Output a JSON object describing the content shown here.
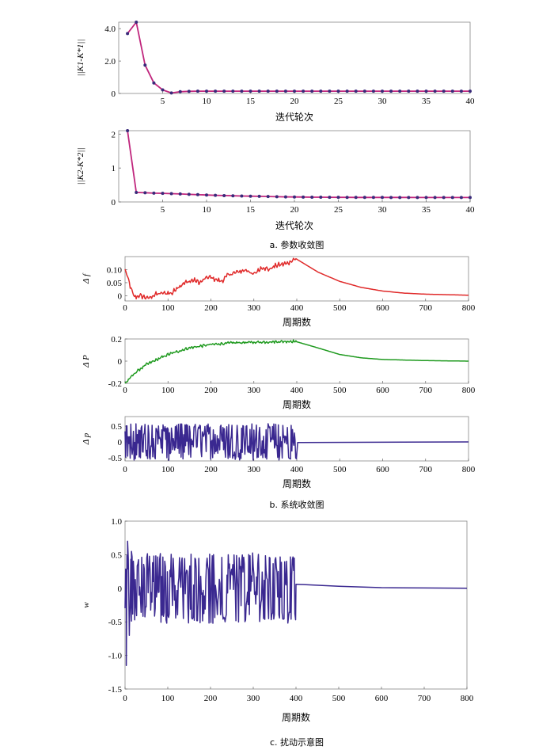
{
  "captions": {
    "a": "a. 参数收敛图",
    "b": "b. 系统收敛图",
    "c": "c. 扰动示意图"
  },
  "chart_data": [
    {
      "id": "a1",
      "type": "line",
      "xlabel": "迭代轮次",
      "ylabel": "||K1-K*1||",
      "xlim": [
        0,
        40
      ],
      "ylim": [
        0,
        4.4
      ],
      "xticks": [
        5,
        10,
        15,
        20,
        25,
        30,
        35,
        40
      ],
      "yticks": [
        0,
        2.0,
        4.0
      ],
      "ytick_labels": [
        "0",
        "2.0",
        "4.0"
      ],
      "color": "#c0267d",
      "marker_color": "#3a2a7a",
      "x": [
        1,
        2,
        3,
        4,
        5,
        6,
        7,
        8,
        9,
        10,
        11,
        12,
        13,
        14,
        15,
        16,
        17,
        18,
        19,
        20,
        21,
        22,
        23,
        24,
        25,
        26,
        27,
        28,
        29,
        30,
        31,
        32,
        33,
        34,
        35,
        36,
        37,
        38,
        39,
        40
      ],
      "y": [
        3.7,
        4.4,
        1.75,
        0.65,
        0.22,
        0.03,
        0.11,
        0.13,
        0.14,
        0.14,
        0.14,
        0.14,
        0.14,
        0.14,
        0.14,
        0.14,
        0.14,
        0.14,
        0.14,
        0.14,
        0.14,
        0.14,
        0.14,
        0.14,
        0.14,
        0.14,
        0.14,
        0.14,
        0.14,
        0.14,
        0.14,
        0.14,
        0.14,
        0.14,
        0.14,
        0.14,
        0.14,
        0.14,
        0.14,
        0.14
      ]
    },
    {
      "id": "a2",
      "type": "line",
      "xlabel": "迭代轮次",
      "ylabel": "||K2-K*2||",
      "xlim": [
        0,
        40
      ],
      "ylim": [
        0,
        2.1
      ],
      "xticks": [
        5,
        10,
        15,
        20,
        25,
        30,
        35,
        40
      ],
      "yticks": [
        0,
        1,
        2
      ],
      "ytick_labels": [
        "0",
        "1",
        "2"
      ],
      "color": "#c0267d",
      "marker_color": "#3a2a7a",
      "x": [
        1,
        2,
        3,
        4,
        5,
        6,
        7,
        8,
        9,
        10,
        11,
        12,
        13,
        14,
        15,
        16,
        17,
        18,
        19,
        20,
        21,
        22,
        23,
        24,
        25,
        26,
        27,
        28,
        29,
        30,
        31,
        32,
        33,
        34,
        35,
        36,
        37,
        38,
        39,
        40
      ],
      "y": [
        2.1,
        0.28,
        0.27,
        0.26,
        0.255,
        0.245,
        0.235,
        0.225,
        0.215,
        0.205,
        0.195,
        0.188,
        0.181,
        0.175,
        0.17,
        0.165,
        0.16,
        0.155,
        0.15,
        0.147,
        0.144,
        0.141,
        0.139,
        0.137,
        0.136,
        0.135,
        0.134,
        0.134,
        0.133,
        0.133,
        0.132,
        0.132,
        0.132,
        0.131,
        0.131,
        0.131,
        0.131,
        0.13,
        0.13,
        0.13
      ]
    },
    {
      "id": "b1",
      "type": "line",
      "xlabel": "周期数",
      "ylabel": "Δ f",
      "xlim": [
        0,
        800
      ],
      "ylim": [
        -0.02,
        0.15
      ],
      "xticks": [
        0,
        100,
        200,
        300,
        400,
        500,
        600,
        700,
        800
      ],
      "yticks": [
        0,
        0.05,
        0.1
      ],
      "ytick_labels": [
        "0",
        "0.05",
        "0.10"
      ],
      "color": "#e02a2a",
      "keypoints": [
        [
          0,
          0.1
        ],
        [
          8,
          0.06
        ],
        [
          15,
          0.02
        ],
        [
          22,
          -0.005
        ],
        [
          35,
          0.0
        ],
        [
          55,
          -0.01
        ],
        [
          70,
          0.005
        ],
        [
          90,
          0.01
        ],
        [
          110,
          0.01
        ],
        [
          120,
          0.03
        ],
        [
          140,
          0.05
        ],
        [
          160,
          0.06
        ],
        [
          175,
          0.05
        ],
        [
          190,
          0.07
        ],
        [
          200,
          0.07
        ],
        [
          215,
          0.06
        ],
        [
          225,
          0.055
        ],
        [
          240,
          0.08
        ],
        [
          260,
          0.09
        ],
        [
          285,
          0.1
        ],
        [
          295,
          0.08
        ],
        [
          305,
          0.09
        ],
        [
          320,
          0.11
        ],
        [
          335,
          0.1
        ],
        [
          350,
          0.115
        ],
        [
          365,
          0.12
        ],
        [
          380,
          0.125
        ],
        [
          392,
          0.14
        ],
        [
          400,
          0.14
        ],
        [
          450,
          0.09
        ],
        [
          500,
          0.055
        ],
        [
          550,
          0.032
        ],
        [
          600,
          0.018
        ],
        [
          650,
          0.01
        ],
        [
          700,
          0.006
        ],
        [
          750,
          0.004
        ],
        [
          800,
          0.002
        ]
      ],
      "noise_end": 400,
      "noise_amp": 0.006
    },
    {
      "id": "b2",
      "type": "line",
      "xlabel": "周期数",
      "ylabel": "Δ P",
      "xlim": [
        0,
        800
      ],
      "ylim": [
        -0.2,
        0.2
      ],
      "xticks": [
        0,
        100,
        200,
        300,
        400,
        500,
        600,
        700,
        800
      ],
      "yticks": [
        -0.2,
        0,
        0.2
      ],
      "ytick_labels": [
        "-0.2",
        "0",
        "0.2"
      ],
      "color": "#1f9a1f",
      "keypoints": [
        [
          0,
          -0.2
        ],
        [
          25,
          -0.1
        ],
        [
          50,
          -0.03
        ],
        [
          100,
          0.06
        ],
        [
          150,
          0.12
        ],
        [
          200,
          0.15
        ],
        [
          250,
          0.165
        ],
        [
          300,
          0.17
        ],
        [
          350,
          0.175
        ],
        [
          395,
          0.18
        ],
        [
          440,
          0.13
        ],
        [
          500,
          0.06
        ],
        [
          550,
          0.03
        ],
        [
          600,
          0.015
        ],
        [
          700,
          0.005
        ],
        [
          800,
          0.0
        ]
      ],
      "noise_end": 400,
      "noise_amp": 0.008
    },
    {
      "id": "b3",
      "type": "line",
      "xlabel": "周期数",
      "ylabel": "Δ p",
      "xlim": [
        0,
        800
      ],
      "ylim": [
        -0.6,
        0.8
      ],
      "xticks": [
        0,
        100,
        200,
        300,
        400,
        500,
        600,
        700,
        800
      ],
      "yticks": [
        -0.5,
        0,
        0.5
      ],
      "ytick_labels": [
        "-0.5",
        "0",
        "0.5"
      ],
      "color": "#3a2890",
      "osc_end": 400,
      "osc_amp": 0.55,
      "tail_value": 0.0
    },
    {
      "id": "c",
      "type": "line",
      "xlabel": "周期数",
      "ylabel": "w",
      "xlim": [
        0,
        800
      ],
      "ylim": [
        -1.5,
        1.0
      ],
      "xticks": [
        0,
        100,
        200,
        300,
        400,
        500,
        600,
        700,
        800
      ],
      "yticks": [
        -1.5,
        -1.0,
        -0.5,
        0,
        0.5,
        1.0
      ],
      "ytick_labels": [
        "-1.5",
        "-1.0",
        "-0.5",
        "0",
        "0.5",
        "1.0"
      ],
      "color": "#3a2890",
      "osc_end": 400,
      "osc_amp": 0.5,
      "start_spikes": [
        [
          3,
          -1.15
        ],
        [
          6,
          0.7
        ],
        [
          10,
          -0.7
        ],
        [
          15,
          0.55
        ]
      ],
      "tail": [
        [
          400,
          0.06
        ],
        [
          500,
          0.03
        ],
        [
          600,
          0.01
        ],
        [
          700,
          0.005
        ],
        [
          800,
          0.0
        ]
      ]
    }
  ]
}
